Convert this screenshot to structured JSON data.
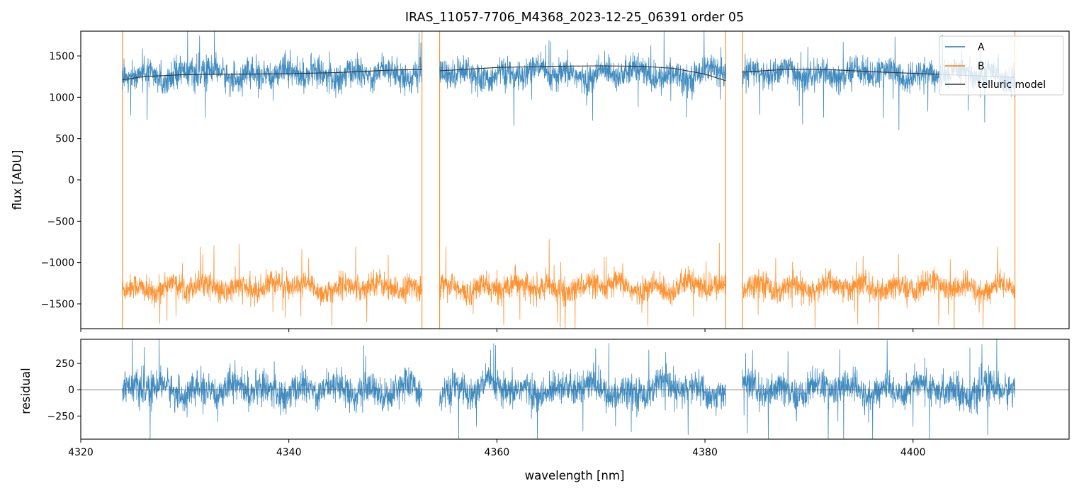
{
  "chart_data": [
    {
      "type": "line",
      "panel": "top",
      "title": "IRAS_11057-7706_M4368_2023-12-25_06391  order 05",
      "xlabel": "",
      "ylabel": "flux [ADU]",
      "xlim": [
        4320,
        4415
      ],
      "ylim": [
        -1800,
        1800
      ],
      "yticks": [
        {
          "value": 1500,
          "label": "1500"
        },
        {
          "value": 1000,
          "label": "1000"
        },
        {
          "value": 500,
          "label": "500"
        },
        {
          "value": 0,
          "label": "0"
        },
        {
          "value": -500,
          "label": "−500"
        },
        {
          "value": -1000,
          "label": "−1000"
        },
        {
          "value": -1500,
          "label": "−1500"
        }
      ],
      "xticks": [
        4320,
        4340,
        4360,
        4380,
        4400
      ],
      "segments": [
        {
          "start": 4324.0,
          "end": 4352.8
        },
        {
          "start": 4354.5,
          "end": 4382.0
        },
        {
          "start": 4383.6,
          "end": 4409.8
        }
      ],
      "series": [
        {
          "name": "A",
          "color": "#1f77b4",
          "mean_level": 1280,
          "noise": 160
        },
        {
          "name": "B",
          "color": "#ff7f0e",
          "mean_level": -1300,
          "noise": 140
        },
        {
          "name": "telluric model",
          "color": "#333333",
          "points": [
            [
              4324.0,
              1210
            ],
            [
              4326,
              1250
            ],
            [
              4330,
              1275
            ],
            [
              4335,
              1280
            ],
            [
              4340,
              1285
            ],
            [
              4345,
              1300
            ],
            [
              4350,
              1330
            ],
            [
              4352.8,
              1335
            ],
            [
              4354.5,
              1320
            ],
            [
              4360,
              1360
            ],
            [
              4365,
              1375
            ],
            [
              4370,
              1380
            ],
            [
              4374,
              1375
            ],
            [
              4377,
              1350
            ],
            [
              4380,
              1280
            ],
            [
              4382.0,
              1200
            ],
            [
              4383.6,
              1305
            ],
            [
              4388,
              1340
            ],
            [
              4392,
              1335
            ],
            [
              4397,
              1305
            ],
            [
              4402,
              1280
            ],
            [
              4406,
              1260
            ],
            [
              4409.8,
              1240
            ]
          ]
        }
      ],
      "legend": {
        "placement": "top-right",
        "entries": [
          "A",
          "B",
          "telluric model"
        ]
      }
    },
    {
      "type": "line",
      "panel": "bottom",
      "xlabel": "wavelength [nm]",
      "ylabel": "residual",
      "xlim": [
        4320,
        4415
      ],
      "ylim": [
        -470,
        480
      ],
      "yticks": [
        {
          "value": 250,
          "label": "250"
        },
        {
          "value": 0,
          "label": "0"
        },
        {
          "value": -250,
          "label": "−250"
        }
      ],
      "xticks": [
        {
          "value": 4320,
          "label": "4320"
        },
        {
          "value": 4340,
          "label": "4340"
        },
        {
          "value": 4360,
          "label": "4360"
        },
        {
          "value": 4380,
          "label": "4380"
        },
        {
          "value": 4400,
          "label": "4400"
        }
      ],
      "series": [
        {
          "name": "residual",
          "color": "#1f77b4",
          "mean_level": 0,
          "noise": 140
        }
      ],
      "zero_line": true
    }
  ]
}
